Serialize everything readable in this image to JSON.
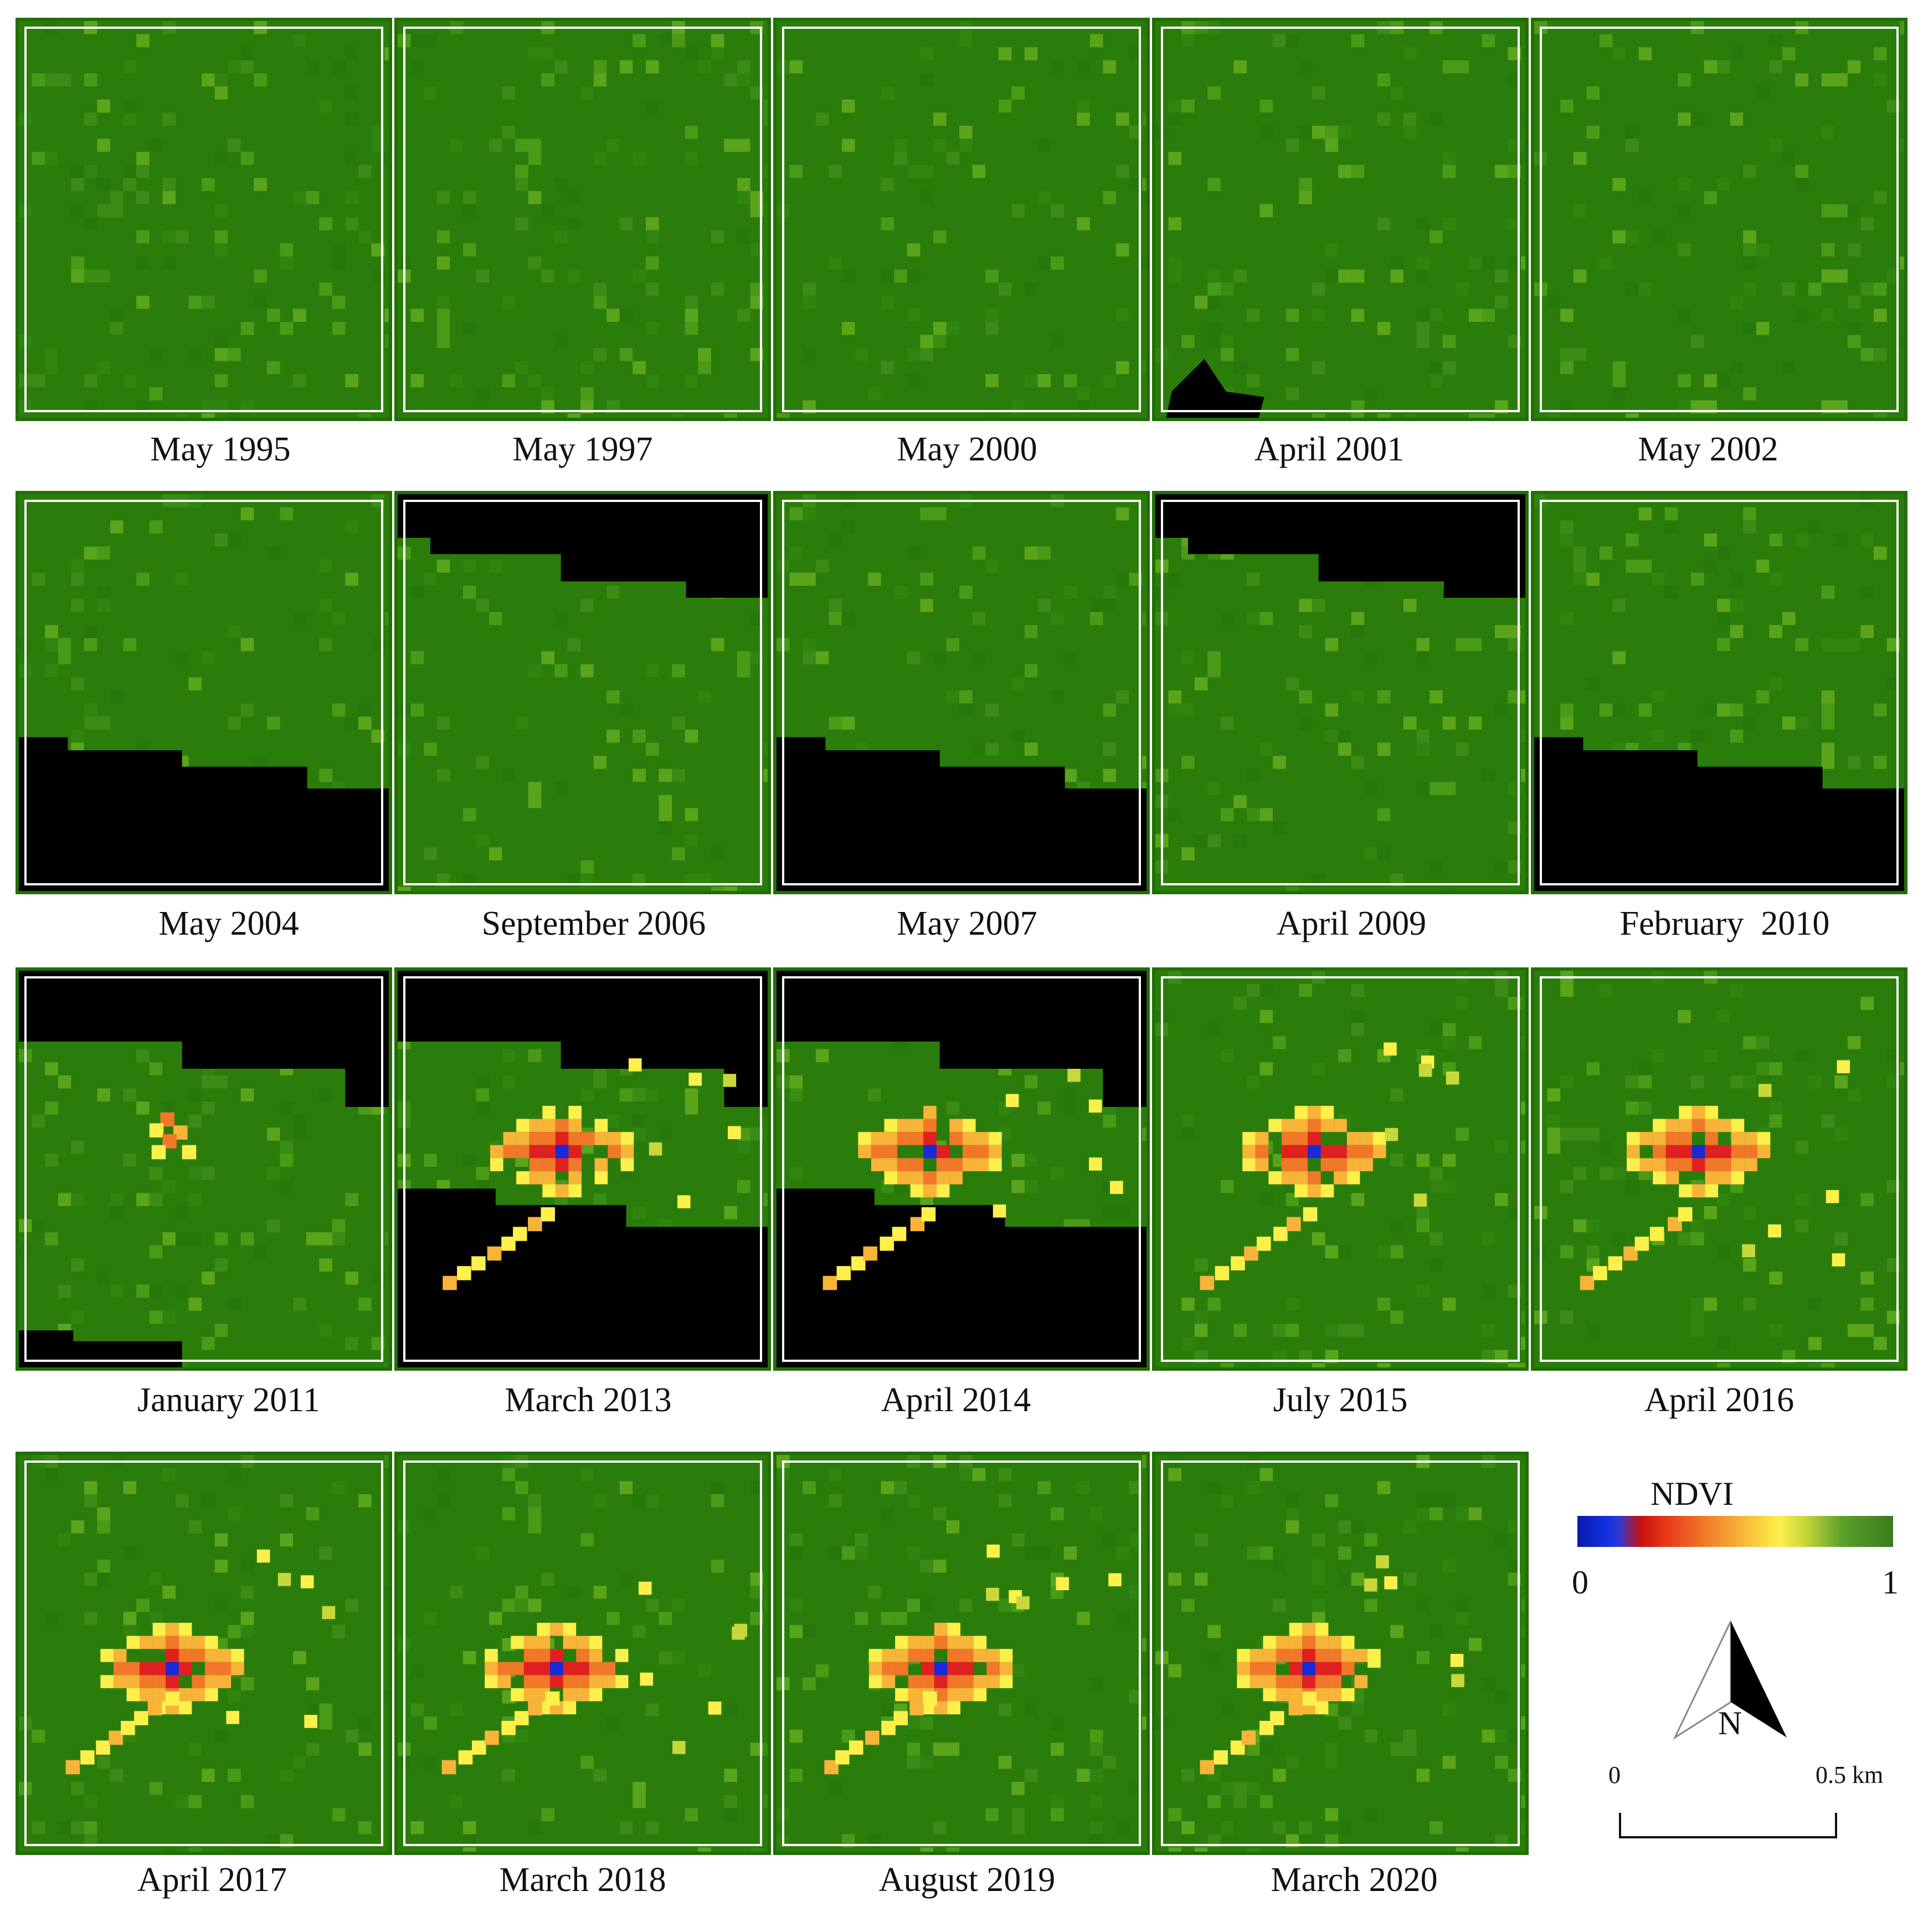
{
  "figure": {
    "panels": [
      {
        "caption": "May 1995",
        "mask": "none",
        "hotspots": []
      },
      {
        "caption": "May 1997",
        "mask": "none",
        "hotspots": []
      },
      {
        "caption": "May 2000",
        "mask": "none",
        "hotspots": []
      },
      {
        "caption": "April 2001",
        "mask": "notch-bottom",
        "hotspots": []
      },
      {
        "caption": "May 2002",
        "mask": "none",
        "hotspots": []
      },
      {
        "caption": "May 2004",
        "mask": "band-bottom",
        "hotspots": []
      },
      {
        "caption": "September 2006",
        "mask": "band-top",
        "hotspots": []
      },
      {
        "caption": "May 2007",
        "mask": "band-bottom",
        "hotspots": []
      },
      {
        "caption": "April 2009",
        "mask": "band-top",
        "hotspots": []
      },
      {
        "caption": "February  2010",
        "mask": "band-bottom",
        "hotspots": []
      },
      {
        "caption": "January 2011",
        "mask": "band-top-bottom",
        "hotspots": [
          "small-core"
        ]
      },
      {
        "caption": "March 2013",
        "mask": "band-top-bottom",
        "hotspots": [
          "core",
          "arm"
        ]
      },
      {
        "caption": "April 2014",
        "mask": "band-top-bottom",
        "hotspots": [
          "core",
          "arm"
        ]
      },
      {
        "caption": "July 2015",
        "mask": "none",
        "hotspots": [
          "core",
          "arm"
        ]
      },
      {
        "caption": "April 2016",
        "mask": "none",
        "hotspots": [
          "core",
          "arm"
        ]
      },
      {
        "caption": "April 2017",
        "mask": "none",
        "hotspots": [
          "core",
          "arm"
        ]
      },
      {
        "caption": "March 2018",
        "mask": "none",
        "hotspots": [
          "core",
          "arm"
        ]
      },
      {
        "caption": "August 2019",
        "mask": "none",
        "hotspots": [
          "core",
          "arm"
        ]
      },
      {
        "caption": "March 2020",
        "mask": "none",
        "hotspots": [
          "core",
          "arm"
        ]
      }
    ]
  },
  "legend": {
    "title": "NDVI",
    "min_label": "0",
    "max_label": "1",
    "north_label": "N",
    "scale_start": "0",
    "scale_end": "0.5 km"
  },
  "colors": {
    "vegetation": "#2a7d0a",
    "nodata": "#000000",
    "low_ndvi": "#1a2ad8",
    "mid_ndvi": "#e02020",
    "high_mid": "#fef04a"
  }
}
